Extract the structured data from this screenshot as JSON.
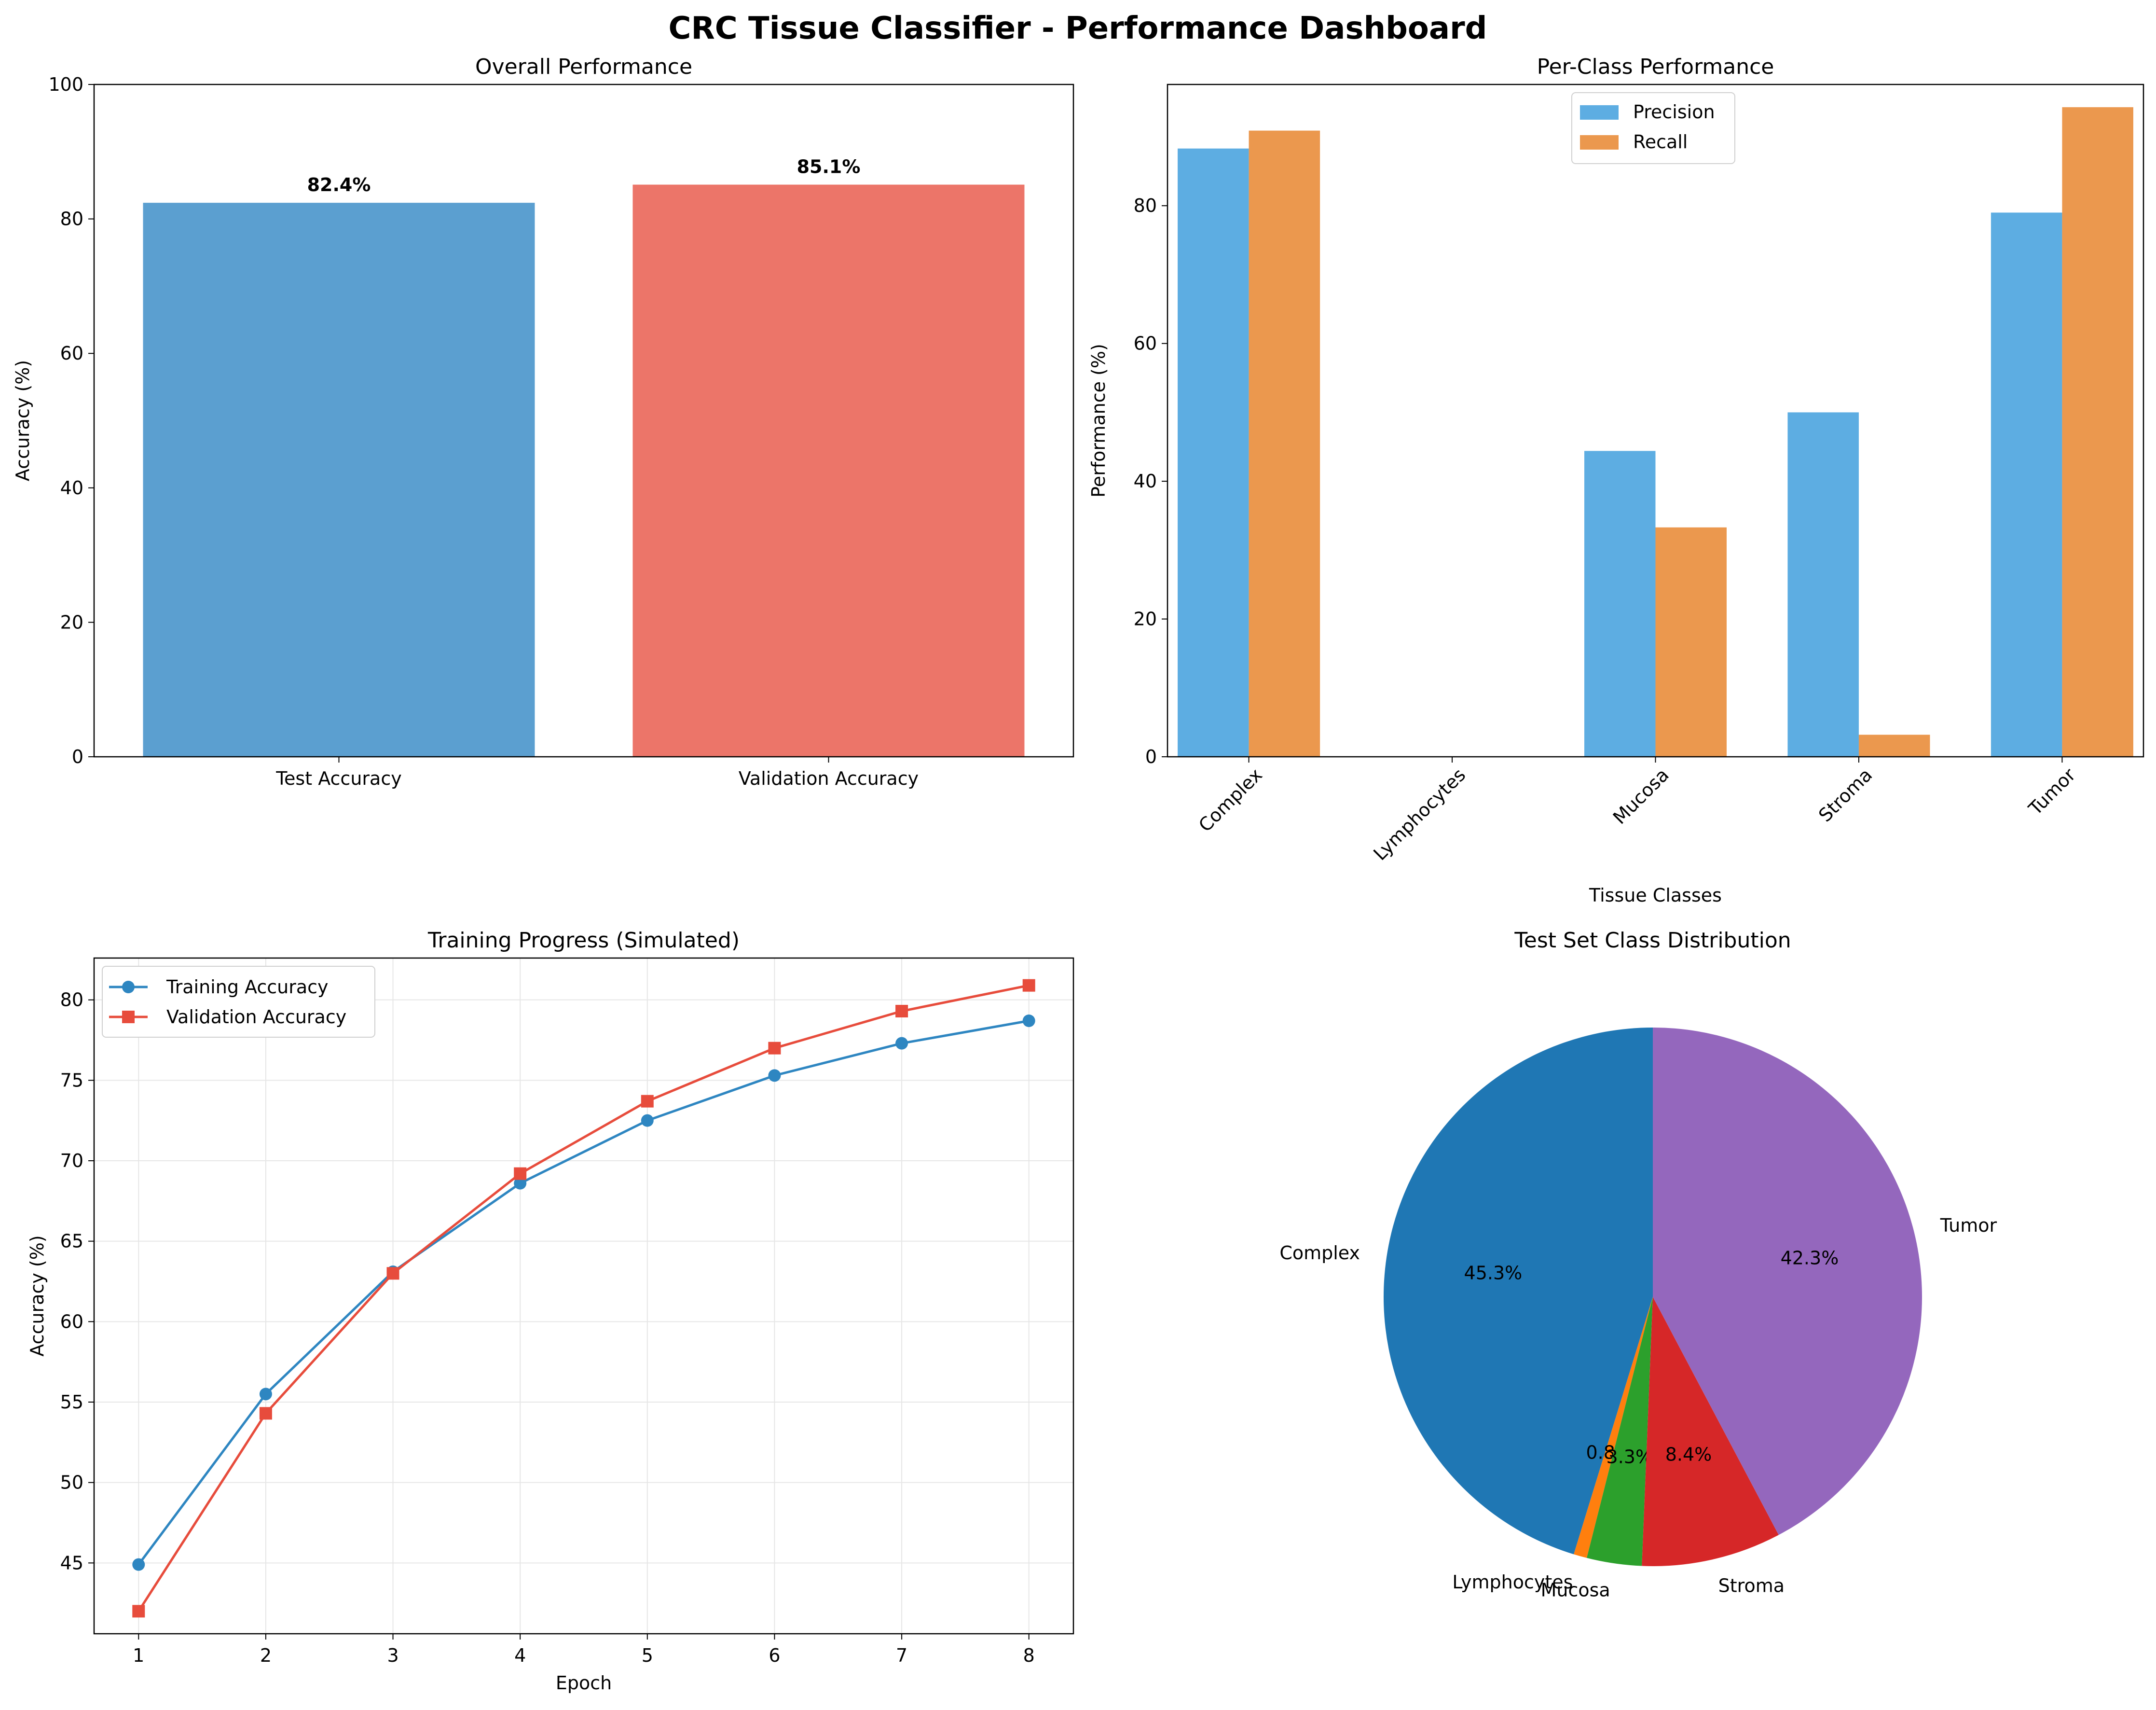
{
  "suptitle": "CRC Tissue Classifier - Performance Dashboard",
  "chart_data": [
    {
      "type": "bar",
      "title": "Overall Performance",
      "xlabel": "",
      "ylabel": "Accuracy (%)",
      "categories": [
        "Test Accuracy",
        "Validation Accuracy"
      ],
      "values": [
        82.4,
        85.1
      ],
      "data_labels": [
        "82.4%",
        "85.1%"
      ],
      "colors": [
        "#5b9fd0",
        "#ec7569"
      ],
      "ylim": [
        0,
        100
      ],
      "yticks": [
        0,
        20,
        40,
        60,
        80,
        100
      ],
      "grid": false
    },
    {
      "type": "bar",
      "title": "Per-Class Performance",
      "xlabel": "Tissue Classes",
      "ylabel": "Performance (%)",
      "categories": [
        "Complex",
        "Lymphocytes",
        "Mucosa",
        "Stroma",
        "Tumor"
      ],
      "series": [
        {
          "name": "Precision",
          "color": "#5dade2",
          "values": [
            88.3,
            0,
            44.4,
            50.0,
            79.0
          ]
        },
        {
          "name": "Recall",
          "color": "#eb984e",
          "values": [
            90.9,
            0,
            33.3,
            3.2,
            94.3
          ]
        }
      ],
      "ylim": [
        0,
        97.6
      ],
      "yticks": [
        0,
        20,
        40,
        60,
        80
      ],
      "legend": "top-center",
      "grid": false
    },
    {
      "type": "line",
      "title": "Training Progress (Simulated)",
      "xlabel": "Epoch",
      "ylabel": "Accuracy (%)",
      "x": [
        1,
        2,
        3,
        4,
        5,
        6,
        7,
        8
      ],
      "series": [
        {
          "name": "Training Accuracy",
          "color": "#2e86c1",
          "marker": "circle",
          "values": [
            44.9,
            55.5,
            63.1,
            68.6,
            72.5,
            75.3,
            77.3,
            78.7
          ]
        },
        {
          "name": "Validation Accuracy",
          "color": "#e74c3c",
          "marker": "square",
          "values": [
            42.0,
            54.3,
            63.0,
            69.2,
            73.7,
            77.0,
            79.3,
            80.9
          ]
        }
      ],
      "xlim": [
        0.65,
        8.35
      ],
      "ylim": [
        40.6,
        82.6
      ],
      "yticks": [
        45,
        50,
        55,
        60,
        65,
        70,
        75,
        80
      ],
      "xticks": [
        1,
        2,
        3,
        4,
        5,
        6,
        7,
        8
      ],
      "legend": "top-left",
      "grid": true
    },
    {
      "type": "pie",
      "title": "Test Set Class Distribution",
      "labels": [
        "Complex",
        "Lymphocytes",
        "Mucosa",
        "Stroma",
        "Tumor"
      ],
      "values": [
        45.3,
        0.8,
        3.3,
        8.4,
        42.3
      ],
      "pct_labels": [
        "45.3%",
        "0.8%",
        "3.3%",
        "8.4%",
        "42.3%"
      ],
      "colors": [
        "#1f77b4",
        "#ff7f0e",
        "#2ca02c",
        "#d62728",
        "#9467bd"
      ],
      "start_angle": 90,
      "direction": "counterclockwise"
    }
  ]
}
